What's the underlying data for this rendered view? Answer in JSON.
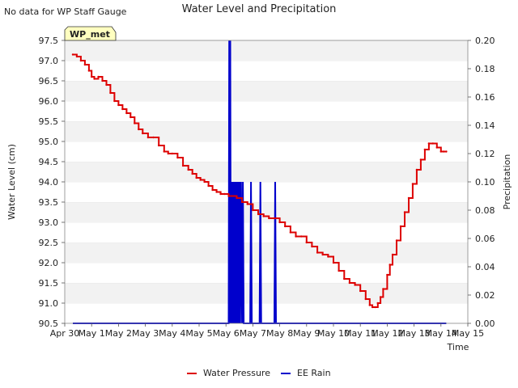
{
  "chart_data": {
    "type": "line",
    "title": "Water Level and Precipitation",
    "note": "No data for WP Staff Gauge",
    "site_badge": "WP_met",
    "xlabel": "Time",
    "ylabel_left": "Water Level (cm)",
    "ylabel_right": "Precipitation",
    "x_ticks": [
      "Apr 30",
      "May 1",
      "May 2",
      "May 3",
      "May 4",
      "May 5",
      "May 6",
      "May 7",
      "May 8",
      "May 9",
      "May 10",
      "May 11",
      "May 12",
      "May 13",
      "May 14",
      "May 15"
    ],
    "xlim": [
      0,
      15
    ],
    "ylim_left": [
      90.5,
      97.5
    ],
    "ylim_right": [
      0.0,
      0.2
    ],
    "y_ticks_left": [
      "90.5",
      "91.0",
      "91.5",
      "92.0",
      "92.5",
      "93.0",
      "93.5",
      "94.0",
      "94.5",
      "95.0",
      "95.5",
      "96.0",
      "96.5",
      "97.0",
      "97.5"
    ],
    "y_ticks_right": [
      "0.00",
      "0.02",
      "0.04",
      "0.06",
      "0.08",
      "0.10",
      "0.12",
      "0.14",
      "0.16",
      "0.18",
      "0.20"
    ],
    "grid": true,
    "legend_position": "bottom-center",
    "series": [
      {
        "name": "Water Pressure",
        "axis": "left",
        "color": "#dd0000",
        "x": [
          0.3,
          0.45,
          0.6,
          0.75,
          0.9,
          1.0,
          1.1,
          1.25,
          1.4,
          1.55,
          1.7,
          1.85,
          2.0,
          2.15,
          2.3,
          2.45,
          2.6,
          2.75,
          2.9,
          3.1,
          3.3,
          3.5,
          3.7,
          3.85,
          4.0,
          4.2,
          4.4,
          4.6,
          4.75,
          4.9,
          5.05,
          5.2,
          5.35,
          5.5,
          5.65,
          5.8,
          5.95,
          6.1,
          6.4,
          6.6,
          6.8,
          7.0,
          7.2,
          7.4,
          7.6,
          7.8,
          8.0,
          8.2,
          8.4,
          8.6,
          8.8,
          9.0,
          9.2,
          9.4,
          9.6,
          9.8,
          10.0,
          10.2,
          10.4,
          10.6,
          10.8,
          11.0,
          11.2,
          11.35,
          11.45,
          11.55,
          11.65,
          11.75,
          11.85,
          12.0,
          12.1,
          12.2,
          12.35,
          12.5,
          12.65,
          12.8,
          12.95,
          13.1,
          13.25,
          13.4,
          13.55,
          13.7,
          13.85,
          14.0,
          14.1,
          14.2
        ],
        "y": [
          97.15,
          97.1,
          97.0,
          96.9,
          96.75,
          96.6,
          96.55,
          96.6,
          96.5,
          96.4,
          96.2,
          96.0,
          95.9,
          95.8,
          95.7,
          95.6,
          95.45,
          95.3,
          95.2,
          95.1,
          95.1,
          94.9,
          94.75,
          94.7,
          94.7,
          94.6,
          94.4,
          94.3,
          94.2,
          94.1,
          94.05,
          94.0,
          93.9,
          93.8,
          93.75,
          93.7,
          93.7,
          93.65,
          93.6,
          93.5,
          93.45,
          93.3,
          93.2,
          93.15,
          93.1,
          93.1,
          93.0,
          92.9,
          92.75,
          92.65,
          92.65,
          92.5,
          92.4,
          92.25,
          92.2,
          92.15,
          92.0,
          91.8,
          91.6,
          91.5,
          91.45,
          91.3,
          91.1,
          90.95,
          90.9,
          90.9,
          91.0,
          91.15,
          91.35,
          91.7,
          91.95,
          92.2,
          92.55,
          92.9,
          93.25,
          93.6,
          93.95,
          94.3,
          94.55,
          94.8,
          94.95,
          94.95,
          94.85,
          94.75,
          94.75,
          94.75
        ]
      },
      {
        "name": "EE Rain",
        "axis": "right",
        "color": "#0000cc",
        "x": [
          0.3,
          6.1,
          6.12,
          6.14,
          6.16,
          6.18,
          6.2,
          6.22,
          6.24,
          6.26,
          6.28,
          6.3,
          6.33,
          6.36,
          6.39,
          6.42,
          6.45,
          6.48,
          6.5,
          6.53,
          6.56,
          6.6,
          6.63,
          6.66,
          6.7,
          6.9,
          6.93,
          6.96,
          7.25,
          7.28,
          7.31,
          7.8,
          7.83,
          7.86,
          14.2
        ],
        "y": [
          0.0,
          0.0,
          0.2,
          0.0,
          0.2,
          0.0,
          0.1,
          0.0,
          0.1,
          0.0,
          0.1,
          0.0,
          0.1,
          0.0,
          0.1,
          0.0,
          0.1,
          0.0,
          0.1,
          0.0,
          0.1,
          0.0,
          0.1,
          0.0,
          0.0,
          0.0,
          0.1,
          0.0,
          0.0,
          0.1,
          0.0,
          0.0,
          0.1,
          0.0,
          0.0
        ]
      }
    ]
  }
}
